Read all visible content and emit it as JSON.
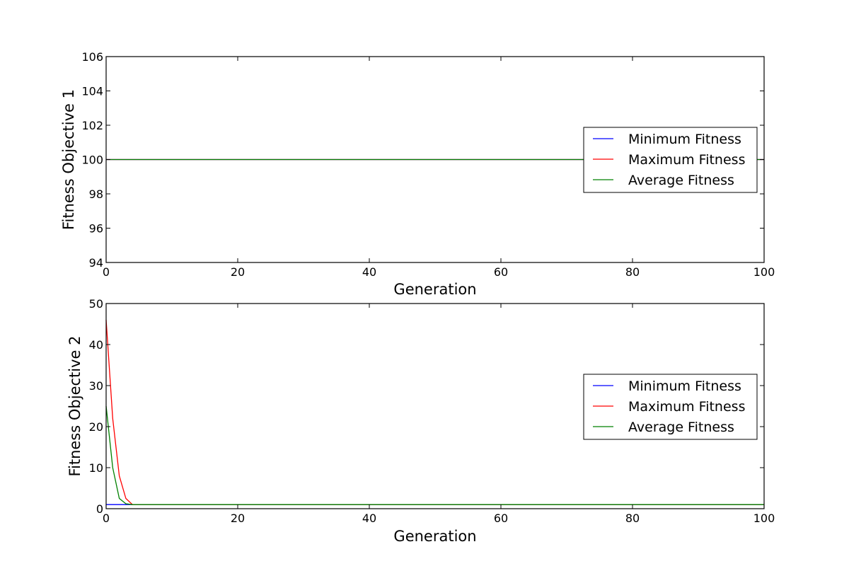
{
  "chart_data": [
    {
      "type": "line",
      "xlabel": "Generation",
      "ylabel": "Fitness Objective 1",
      "xlim": [
        0,
        100
      ],
      "ylim": [
        94,
        106
      ],
      "x_ticks": [
        "0",
        "20",
        "40",
        "60",
        "80",
        "100"
      ],
      "y_ticks": [
        "94",
        "96",
        "98",
        "100",
        "102",
        "104",
        "106"
      ],
      "grid": false,
      "legend_position": "center-right",
      "series": [
        {
          "name": "Minimum Fitness",
          "color": "#0000ff",
          "x": [
            0,
            100
          ],
          "y": [
            100,
            100
          ]
        },
        {
          "name": "Maximum Fitness",
          "color": "#ff0000",
          "x": [
            0,
            100
          ],
          "y": [
            100,
            100
          ]
        },
        {
          "name": "Average Fitness",
          "color": "#008000",
          "x": [
            0,
            100
          ],
          "y": [
            100,
            100
          ]
        }
      ]
    },
    {
      "type": "line",
      "xlabel": "Generation",
      "ylabel": "Fitness Objective 2",
      "xlim": [
        0,
        100
      ],
      "ylim": [
        0,
        50
      ],
      "x_ticks": [
        "0",
        "20",
        "40",
        "60",
        "80",
        "100"
      ],
      "y_ticks": [
        "0",
        "10",
        "20",
        "30",
        "40",
        "50"
      ],
      "grid": false,
      "legend_position": "center-right",
      "series": [
        {
          "name": "Minimum Fitness",
          "color": "#0000ff",
          "x": [
            0,
            1,
            2,
            3,
            4,
            100
          ],
          "y": [
            1,
            1,
            1,
            1,
            1,
            1
          ]
        },
        {
          "name": "Maximum Fitness",
          "color": "#ff0000",
          "x": [
            0,
            1,
            2,
            3,
            4,
            100
          ],
          "y": [
            46,
            22,
            8,
            2.5,
            1,
            1
          ]
        },
        {
          "name": "Average Fitness",
          "color": "#008000",
          "x": [
            0,
            1,
            2,
            3,
            4,
            100
          ],
          "y": [
            25,
            10,
            2.5,
            1.2,
            1,
            1
          ]
        }
      ]
    }
  ]
}
